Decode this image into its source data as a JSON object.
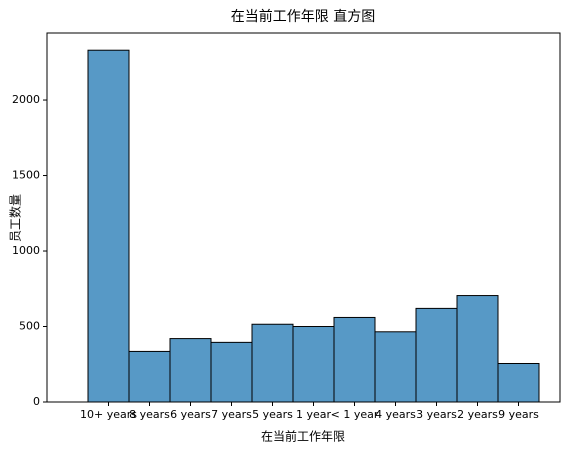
{
  "chart_data": {
    "type": "bar",
    "title": "在当前工作年限 直方图",
    "x_label": "在当前工作年限",
    "y_label": "员工数量",
    "categories": [
      "10+ years",
      "8 years",
      "6 years",
      "7 years",
      "5 years",
      "1 year",
      "< 1 year",
      "4 years",
      "3 years",
      "2 years",
      "9 years"
    ],
    "values": [
      2330,
      335,
      420,
      395,
      515,
      500,
      560,
      465,
      620,
      705,
      255
    ],
    "color": "#5799c6",
    "ylim": [
      0,
      2444
    ],
    "yticks": [
      0,
      500,
      1000,
      1500,
      2000
    ]
  }
}
